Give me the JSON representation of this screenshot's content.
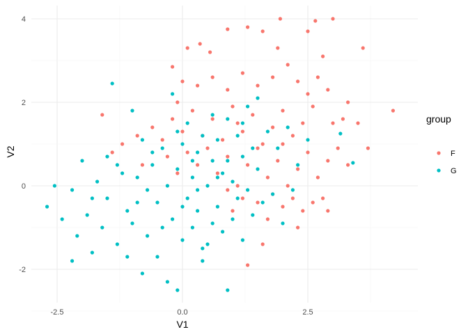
{
  "chart_data": {
    "type": "scatter",
    "title": "",
    "xlabel": "V1",
    "ylabel": "V2",
    "xlim": [
      -2.9,
      4.65
    ],
    "ylim": [
      -2.8,
      4.3
    ],
    "xticks": [
      -2.5,
      0.0,
      2.5
    ],
    "xtick_labels": [
      "-2.5",
      "0.0",
      "2.5"
    ],
    "yticks": [
      -2,
      0,
      2,
      4
    ],
    "ytick_labels": [
      "-2",
      "0",
      "2",
      "4"
    ],
    "grid": true,
    "legend": {
      "title": "group",
      "position": "right",
      "entries": [
        "F",
        "G"
      ]
    },
    "series": [
      {
        "name": "F",
        "color": "#F8766D",
        "points": [
          [
            4.2,
            1.8
          ],
          [
            3.6,
            3.3
          ],
          [
            3.0,
            4.0
          ],
          [
            2.65,
            3.95
          ],
          [
            1.95,
            4.0
          ],
          [
            2.5,
            3.7
          ],
          [
            1.3,
            3.8
          ],
          [
            0.9,
            3.75
          ],
          [
            1.6,
            3.7
          ],
          [
            1.9,
            3.3
          ],
          [
            2.8,
            3.1
          ],
          [
            0.35,
            3.4
          ],
          [
            0.1,
            3.3
          ],
          [
            -0.2,
            2.85
          ],
          [
            0.55,
            3.2
          ],
          [
            3.3,
            2.0
          ],
          [
            3.2,
            1.6
          ],
          [
            3.0,
            1.5
          ],
          [
            3.5,
            1.5
          ],
          [
            2.9,
            2.3
          ],
          [
            2.7,
            2.6
          ],
          [
            2.5,
            2.2
          ],
          [
            2.3,
            2.5
          ],
          [
            2.1,
            2.9
          ],
          [
            1.8,
            2.6
          ],
          [
            1.5,
            2.4
          ],
          [
            1.2,
            2.7
          ],
          [
            0.9,
            2.3
          ],
          [
            0.6,
            2.6
          ],
          [
            0.3,
            2.4
          ],
          [
            0.0,
            2.5
          ],
          [
            -0.1,
            2.0
          ],
          [
            2.6,
            1.9
          ],
          [
            2.4,
            1.5
          ],
          [
            2.2,
            1.2
          ],
          [
            2.0,
            1.8
          ],
          [
            1.8,
            1.4
          ],
          [
            1.6,
            1.0
          ],
          [
            1.4,
            1.7
          ],
          [
            1.2,
            1.3
          ],
          [
            1.0,
            1.9
          ],
          [
            0.8,
            1.1
          ],
          [
            0.6,
            1.6
          ],
          [
            0.4,
            1.2
          ],
          [
            0.2,
            1.8
          ],
          [
            0.0,
            1.3
          ],
          [
            -0.2,
            1.6
          ],
          [
            -0.4,
            1.1
          ],
          [
            -0.6,
            1.4
          ],
          [
            -0.9,
            1.2
          ],
          [
            -1.2,
            1.0
          ],
          [
            -1.6,
            1.7
          ],
          [
            -1.4,
            0.8
          ],
          [
            3.1,
            0.9
          ],
          [
            2.9,
            0.6
          ],
          [
            2.7,
            0.2
          ],
          [
            2.5,
            0.8
          ],
          [
            2.3,
            0.4
          ],
          [
            2.1,
            0.0
          ],
          [
            1.9,
            0.6
          ],
          [
            1.7,
            0.2
          ],
          [
            1.5,
            0.9
          ],
          [
            1.3,
            0.5
          ],
          [
            1.1,
            0.0
          ],
          [
            0.9,
            0.7
          ],
          [
            0.7,
            0.3
          ],
          [
            0.5,
            0.9
          ],
          [
            0.3,
            0.5
          ],
          [
            0.1,
            0.8
          ],
          [
            -0.1,
            0.3
          ],
          [
            -0.3,
            0.7
          ],
          [
            -0.8,
            0.5
          ],
          [
            3.3,
            0.5
          ],
          [
            2.8,
            -0.3
          ],
          [
            2.6,
            -0.4
          ],
          [
            2.4,
            -0.6
          ],
          [
            2.2,
            -0.3
          ],
          [
            2.0,
            -0.5
          ],
          [
            1.8,
            -0.2
          ],
          [
            1.5,
            -0.4
          ],
          [
            1.2,
            -0.3
          ],
          [
            0.9,
            -0.1
          ],
          [
            2.3,
            -1.0
          ],
          [
            1.6,
            -1.4
          ],
          [
            1.3,
            -1.9
          ],
          [
            1.7,
            -0.8
          ],
          [
            1.0,
            -0.6
          ],
          [
            2.9,
            -0.6
          ],
          [
            3.7,
            0.9
          ],
          [
            2.0,
            1.0
          ],
          [
            1.1,
            1.5
          ]
        ]
      },
      {
        "name": "G",
        "color": "#00BFC4",
        "points": [
          [
            -2.7,
            -0.5
          ],
          [
            -2.55,
            0.0
          ],
          [
            -2.2,
            -1.8
          ],
          [
            -2.4,
            -0.8
          ],
          [
            -2.1,
            -1.2
          ],
          [
            -1.9,
            -0.7
          ],
          [
            -2.0,
            0.6
          ],
          [
            -1.8,
            -1.6
          ],
          [
            -1.7,
            0.1
          ],
          [
            -1.6,
            -1.0
          ],
          [
            -1.5,
            -0.3
          ],
          [
            -1.4,
            2.45
          ],
          [
            -1.5,
            0.7
          ],
          [
            -1.3,
            -1.4
          ],
          [
            -1.2,
            0.3
          ],
          [
            -1.1,
            -0.6
          ],
          [
            -1.0,
            1.8
          ],
          [
            -1.0,
            -0.9
          ],
          [
            -0.9,
            0.2
          ],
          [
            -0.8,
            -2.1
          ],
          [
            -0.8,
            1.1
          ],
          [
            -0.7,
            -1.2
          ],
          [
            -0.6,
            0.5
          ],
          [
            -0.5,
            -1.7
          ],
          [
            -0.5,
            -0.4
          ],
          [
            -0.4,
            0.9
          ],
          [
            -0.3,
            -2.3
          ],
          [
            -0.3,
            0.0
          ],
          [
            -0.2,
            2.2
          ],
          [
            -0.2,
            -0.8
          ],
          [
            -0.1,
            -2.5
          ],
          [
            -0.1,
            0.4
          ],
          [
            0.0,
            -1.3
          ],
          [
            0.0,
            1.0
          ],
          [
            0.1,
            -0.3
          ],
          [
            0.1,
            1.5
          ],
          [
            0.2,
            -1.0
          ],
          [
            0.2,
            0.2
          ],
          [
            0.3,
            0.8
          ],
          [
            0.3,
            -0.6
          ],
          [
            0.4,
            -1.8
          ],
          [
            0.4,
            1.2
          ],
          [
            0.5,
            0.0
          ],
          [
            0.5,
            -1.4
          ],
          [
            0.6,
            0.6
          ],
          [
            0.6,
            1.7
          ],
          [
            0.7,
            -0.5
          ],
          [
            0.7,
            1.1
          ],
          [
            0.8,
            -1.1
          ],
          [
            0.8,
            0.3
          ],
          [
            0.9,
            -2.5
          ],
          [
            0.9,
            1.6
          ],
          [
            1.0,
            0.1
          ],
          [
            1.0,
            -0.8
          ],
          [
            1.1,
            1.2
          ],
          [
            1.1,
            -0.3
          ],
          [
            1.2,
            -1.3
          ],
          [
            1.2,
            0.7
          ],
          [
            1.3,
            1.9
          ],
          [
            1.3,
            -0.1
          ],
          [
            1.4,
            -0.7
          ],
          [
            1.5,
            2.1
          ],
          [
            1.5,
            0.4
          ],
          [
            1.6,
            -0.4
          ],
          [
            1.7,
            1.3
          ],
          [
            1.8,
            -0.2
          ],
          [
            1.9,
            0.9
          ],
          [
            2.0,
            -0.9
          ],
          [
            2.1,
            1.4
          ],
          [
            2.2,
            -0.1
          ],
          [
            2.3,
            0.5
          ],
          [
            2.5,
            1.1
          ],
          [
            3.15,
            1.25
          ],
          [
            3.4,
            0.55
          ],
          [
            -2.2,
            -0.1
          ],
          [
            -1.8,
            -0.3
          ],
          [
            -1.1,
            -1.7
          ],
          [
            -0.7,
            -0.1
          ],
          [
            -0.4,
            -1.0
          ],
          [
            0.0,
            -0.5
          ],
          [
            0.3,
            -0.1
          ],
          [
            0.6,
            -0.9
          ],
          [
            0.9,
            0.6
          ],
          [
            1.2,
            1.5
          ],
          [
            -1.3,
            0.5
          ],
          [
            -0.6,
            0.8
          ],
          [
            -0.1,
            1.3
          ],
          [
            0.2,
            0.6
          ],
          [
            0.7,
            0.2
          ],
          [
            1.4,
            0.9
          ],
          [
            -0.9,
            -0.4
          ],
          [
            0.4,
            -1.5
          ]
        ]
      }
    ]
  }
}
